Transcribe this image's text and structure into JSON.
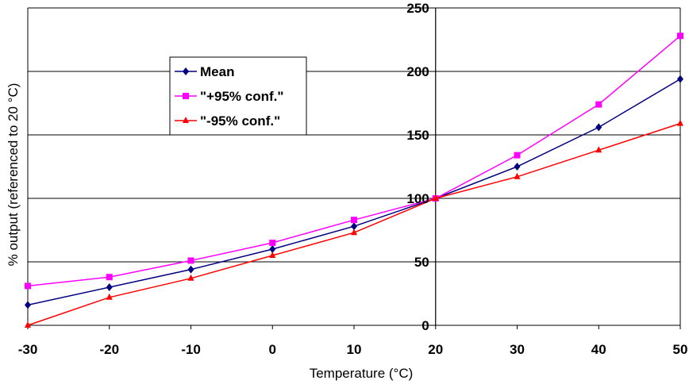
{
  "chart_data": {
    "type": "line",
    "title": "",
    "xlabel": "Temperature (°C)",
    "ylabel": "% output (referenced to 20 °C)",
    "x": [
      -30,
      -20,
      -10,
      0,
      10,
      20,
      30,
      40,
      50
    ],
    "xlim": [
      -30,
      50
    ],
    "ylim": [
      0,
      250
    ],
    "x_ticks": [
      "-30",
      "-20",
      "-10",
      "0",
      "10",
      "20",
      "30",
      "40",
      "50"
    ],
    "y_ticks": [
      "0",
      "50",
      "100",
      "150",
      "200",
      "250"
    ],
    "grid": "horizontal",
    "legend_position": "upper-left",
    "series": [
      {
        "name": "Mean",
        "color": "#000080",
        "marker": "diamond",
        "values": [
          16,
          30,
          44,
          60,
          78,
          100,
          125,
          156,
          194
        ]
      },
      {
        "name": "\"+95% conf.\"",
        "color": "#ff00ff",
        "marker": "square",
        "values": [
          31,
          38,
          51,
          65,
          83,
          100,
          134,
          174,
          228
        ]
      },
      {
        "name": "\"-95% conf.\"",
        "color": "#ff0000",
        "marker": "triangle",
        "values": [
          0,
          22,
          37,
          55,
          73,
          100,
          117,
          138,
          159
        ]
      }
    ]
  }
}
